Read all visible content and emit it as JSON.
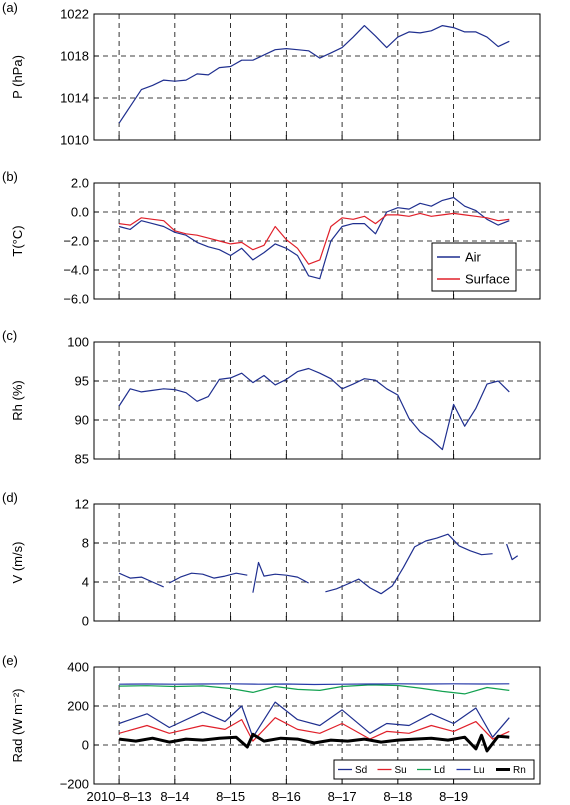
{
  "figure": {
    "x_ticks": [
      "2010–8–13",
      "8–14",
      "8–15",
      "8–16",
      "8–17",
      "8–18",
      "8–19"
    ]
  },
  "chart_data": [
    {
      "type": "line",
      "panel_label": "(a)",
      "ylabel": "P (hPa)",
      "ylim": [
        1010,
        1022
      ],
      "yticks": [
        1010,
        1014,
        1018,
        1022
      ],
      "ytick_labels": [
        "1010",
        "1014",
        "1018",
        "1022"
      ],
      "grid": true,
      "series": [
        {
          "color": "#1f2f8f",
          "x": [
            0,
            0.2,
            0.4,
            0.6,
            0.8,
            1.0,
            1.2,
            1.4,
            1.6,
            1.8,
            2.0,
            2.2,
            2.4,
            2.6,
            2.8,
            3.0,
            3.2,
            3.4,
            3.6,
            3.8,
            4.0,
            4.2,
            4.4,
            4.6,
            4.8,
            5.0,
            5.2,
            5.4,
            5.6,
            5.8,
            6.0,
            6.2,
            6.4,
            6.6,
            6.8,
            7.0
          ],
          "y": [
            1011.6,
            1013.2,
            1014.8,
            1015.2,
            1015.7,
            1015.6,
            1015.7,
            1016.3,
            1016.2,
            1016.9,
            1017.0,
            1017.6,
            1017.6,
            1018.1,
            1018.6,
            1018.7,
            1018.6,
            1018.5,
            1017.8,
            1018.3,
            1018.8,
            1019.8,
            1020.9,
            1019.9,
            1018.8,
            1019.8,
            1020.3,
            1020.2,
            1020.4,
            1020.9,
            1020.7,
            1020.3,
            1020.3,
            1019.8,
            1018.9,
            1019.4
          ]
        }
      ]
    },
    {
      "type": "line",
      "panel_label": "(b)",
      "ylabel": "T(°C)",
      "ylim": [
        -6,
        2
      ],
      "yticks": [
        -6,
        -4,
        -2,
        0,
        2
      ],
      "ytick_labels": [
        "−6.0",
        "−4.0",
        "−2.0",
        "0.0",
        "2.0"
      ],
      "grid": true,
      "legend": {
        "placement": "inside-right"
      },
      "series": [
        {
          "name": "Air",
          "color": "#1f2f8f",
          "x": [
            0,
            0.2,
            0.4,
            0.6,
            0.8,
            1.0,
            1.2,
            1.4,
            1.6,
            1.8,
            2.0,
            2.2,
            2.4,
            2.6,
            2.8,
            3.0,
            3.2,
            3.4,
            3.6,
            3.8,
            4.0,
            4.2,
            4.4,
            4.6,
            4.8,
            5.0,
            5.2,
            5.4,
            5.6,
            5.8,
            6.0,
            6.2,
            6.4,
            6.6,
            6.8,
            7.0
          ],
          "y": [
            -1.0,
            -1.2,
            -0.6,
            -0.8,
            -1.0,
            -1.4,
            -1.6,
            -2.1,
            -2.4,
            -2.6,
            -3.0,
            -2.5,
            -3.3,
            -2.8,
            -2.2,
            -2.5,
            -3.0,
            -4.4,
            -4.6,
            -2.0,
            -1.0,
            -0.8,
            -0.8,
            -1.5,
            0.0,
            0.3,
            0.2,
            0.6,
            0.4,
            0.8,
            1.0,
            0.4,
            0.1,
            -0.5,
            -0.9,
            -0.6
          ]
        },
        {
          "name": "Surface",
          "color": "#e0202a",
          "x": [
            0,
            0.2,
            0.4,
            0.6,
            0.8,
            1.0,
            1.2,
            1.4,
            1.6,
            1.8,
            2.0,
            2.2,
            2.4,
            2.6,
            2.8,
            3.0,
            3.2,
            3.4,
            3.6,
            3.8,
            4.0,
            4.2,
            4.4,
            4.6,
            4.8,
            5.0,
            5.2,
            5.4,
            5.6,
            5.8,
            6.0,
            6.2,
            6.4,
            6.6,
            6.8,
            7.0
          ],
          "y": [
            -0.8,
            -0.9,
            -0.4,
            -0.5,
            -0.6,
            -1.3,
            -1.5,
            -1.6,
            -1.8,
            -2.0,
            -2.2,
            -2.1,
            -2.6,
            -2.3,
            -1.0,
            -1.9,
            -2.5,
            -3.6,
            -3.3,
            -1.0,
            -0.4,
            -0.5,
            -0.3,
            -0.8,
            -0.2,
            -0.2,
            -0.3,
            -0.1,
            -0.3,
            -0.2,
            -0.1,
            -0.2,
            -0.3,
            -0.4,
            -0.6,
            -0.5
          ]
        }
      ]
    },
    {
      "type": "line",
      "panel_label": "(c)",
      "ylabel": "Rh (%)",
      "ylim": [
        85,
        100
      ],
      "yticks": [
        85,
        90,
        95,
        100
      ],
      "ytick_labels": [
        "85",
        "90",
        "95",
        "100"
      ],
      "grid": true,
      "series": [
        {
          "color": "#1f2f8f",
          "x": [
            0,
            0.2,
            0.4,
            0.6,
            0.8,
            1.0,
            1.2,
            1.4,
            1.6,
            1.8,
            2.0,
            2.2,
            2.4,
            2.6,
            2.8,
            3.0,
            3.2,
            3.4,
            3.6,
            3.8,
            4.0,
            4.2,
            4.4,
            4.6,
            4.8,
            5.0,
            5.2,
            5.4,
            5.6,
            5.8,
            6.0,
            6.2,
            6.4,
            6.6,
            6.8,
            7.0
          ],
          "y": [
            91.8,
            94.0,
            93.6,
            93.8,
            94.0,
            93.9,
            93.5,
            92.4,
            93.0,
            95.2,
            95.4,
            96.0,
            94.8,
            95.7,
            94.5,
            95.2,
            96.2,
            96.6,
            96.0,
            95.3,
            94.0,
            94.6,
            95.3,
            95.1,
            94.0,
            93.2,
            90.2,
            88.5,
            87.5,
            86.2,
            92.0,
            89.2,
            91.5,
            94.6,
            95.0,
            93.6
          ]
        }
      ]
    },
    {
      "type": "line",
      "panel_label": "(d)",
      "ylabel": "V (m/s)",
      "ylim": [
        0,
        12
      ],
      "yticks": [
        0,
        4,
        8,
        12
      ],
      "ytick_labels": [
        "0",
        "4",
        "8",
        "12"
      ],
      "grid": true,
      "series": [
        {
          "color": "#1f2f8f",
          "segments": [
            {
              "x": [
                0,
                0.2,
                0.4,
                0.6,
                0.8
              ],
              "y": [
                4.9,
                4.4,
                4.5,
                4.0,
                3.5
              ]
            },
            {
              "x": [
                0.9,
                1.1,
                1.3,
                1.5,
                1.7,
                1.9,
                2.1,
                2.3
              ],
              "y": [
                3.9,
                4.5,
                4.9,
                4.8,
                4.4,
                4.6,
                4.9,
                4.7
              ]
            },
            {
              "x": [
                2.4,
                2.5,
                2.6,
                2.8,
                3.0,
                3.2,
                3.4
              ],
              "y": [
                2.9,
                6.0,
                4.6,
                4.8,
                4.7,
                4.5,
                3.9
              ]
            },
            {
              "x": [
                3.7,
                3.9,
                4.1,
                4.3,
                4.5,
                4.7,
                4.9,
                5.1,
                5.3,
                5.5,
                5.7,
                5.9,
                6.1,
                6.3,
                6.5,
                6.7
              ],
              "y": [
                3.0,
                3.3,
                3.8,
                4.3,
                3.4,
                2.8,
                3.6,
                5.5,
                7.6,
                8.2,
                8.5,
                8.9,
                7.7,
                7.2,
                6.8,
                6.9
              ]
            },
            {
              "x": [
                6.95,
                7.05,
                7.15
              ],
              "y": [
                7.9,
                6.3,
                6.7
              ]
            }
          ]
        }
      ]
    },
    {
      "type": "line",
      "panel_label": "(e)",
      "ylabel": "Rad (W m⁻²)",
      "ylim": [
        -200,
        400
      ],
      "yticks": [
        -200,
        0,
        200,
        400
      ],
      "ytick_labels": [
        "−200",
        "0",
        "200",
        "400"
      ],
      "grid": true,
      "legend": {
        "placement": "bottom-right",
        "columns": 5
      },
      "series": [
        {
          "name": "Sd",
          "color": "#1f2f8f",
          "x": [
            0,
            0.5,
            0.9,
            1.5,
            1.9,
            2.2,
            2.4,
            2.8,
            3.2,
            3.6,
            4.0,
            4.5,
            4.8,
            5.2,
            5.6,
            6.0,
            6.4,
            6.7,
            7.0
          ],
          "y": [
            110,
            160,
            90,
            170,
            120,
            200,
            40,
            220,
            130,
            100,
            180,
            60,
            110,
            100,
            160,
            110,
            190,
            40,
            140
          ]
        },
        {
          "name": "Su",
          "color": "#e0202a",
          "x": [
            0,
            0.5,
            0.9,
            1.5,
            1.9,
            2.2,
            2.4,
            2.8,
            3.2,
            3.6,
            4.0,
            4.5,
            4.8,
            5.2,
            5.6,
            6.0,
            6.4,
            6.7,
            7.0
          ],
          "y": [
            60,
            100,
            60,
            100,
            80,
            130,
            20,
            140,
            80,
            60,
            110,
            30,
            70,
            60,
            100,
            70,
            120,
            30,
            70
          ]
        },
        {
          "name": "Ld",
          "color": "#12a150",
          "x": [
            0,
            0.5,
            1.0,
            1.5,
            2.0,
            2.4,
            2.8,
            3.2,
            3.6,
            4.0,
            4.5,
            5.0,
            5.4,
            5.8,
            6.2,
            6.6,
            7.0
          ],
          "y": [
            302,
            304,
            300,
            303,
            290,
            270,
            300,
            285,
            280,
            300,
            308,
            305,
            292,
            275,
            262,
            295,
            280
          ]
        },
        {
          "name": "Lu",
          "color": "#2538a8",
          "x": [
            0,
            0.5,
            1.0,
            1.5,
            2.0,
            2.5,
            3.0,
            3.5,
            4.0,
            4.5,
            5.0,
            5.5,
            6.0,
            6.5,
            7.0
          ],
          "y": [
            312,
            313,
            312,
            313,
            314,
            312,
            313,
            310,
            312,
            313,
            314,
            313,
            314,
            313,
            314
          ]
        },
        {
          "name": "Rn",
          "color": "#000000",
          "x": [
            0,
            0.3,
            0.6,
            0.9,
            1.2,
            1.5,
            1.8,
            2.1,
            2.3,
            2.4,
            2.6,
            2.9,
            3.2,
            3.5,
            3.8,
            4.1,
            4.4,
            4.7,
            5.0,
            5.3,
            5.6,
            5.9,
            6.2,
            6.4,
            6.5,
            6.6,
            6.8,
            7.0
          ],
          "y": [
            30,
            20,
            35,
            15,
            30,
            25,
            35,
            40,
            -10,
            55,
            20,
            35,
            30,
            10,
            25,
            20,
            30,
            15,
            25,
            30,
            35,
            25,
            40,
            -20,
            50,
            -30,
            45,
            40
          ]
        }
      ]
    }
  ]
}
